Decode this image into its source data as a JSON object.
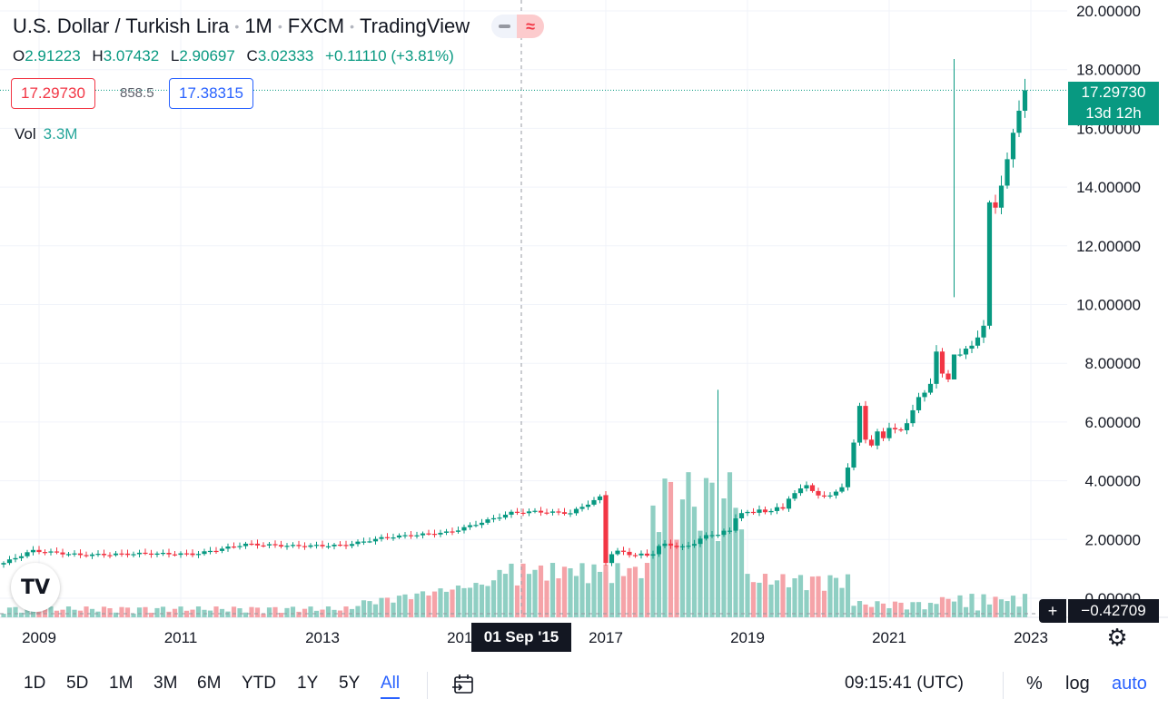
{
  "header": {
    "symbol_name": "U.S. Dollar / Turkish Lira",
    "interval": "1M",
    "exchange": "FXCM",
    "source": "TradingView"
  },
  "ohlc": {
    "o_label": "O",
    "o": "2.91223",
    "h_label": "H",
    "h": "3.07432",
    "l_label": "L",
    "l": "2.90697",
    "c_label": "C",
    "c": "3.02333",
    "change": "+0.11110 (+3.81%)"
  },
  "quote": {
    "sell": "17.29730",
    "spread": "858.5",
    "buy": "17.38315"
  },
  "volume": {
    "label": "Vol",
    "value": "3.3M"
  },
  "last_price": {
    "price": "17.29730",
    "countdown": "13d 12h"
  },
  "crosshair": {
    "date_label": "01 Sep '15",
    "price_label": "−0.42709"
  },
  "toolbar": {
    "timeframes": [
      "1D",
      "5D",
      "1M",
      "3M",
      "6M",
      "YTD",
      "1Y",
      "5Y",
      "All"
    ],
    "active_timeframe": "All",
    "clock": "09:15:41 (UTC)",
    "percent": "%",
    "log": "log",
    "auto": "auto"
  },
  "icons": {
    "logo": "tradingview-logo-icon",
    "settings": "gear-icon",
    "calendar": "calendar-goto-icon",
    "plus": "plus-icon"
  },
  "colors": {
    "up": "#089981",
    "down": "#f23645",
    "vol_up": "#8fcfc3",
    "vol_down": "#f5a3a8",
    "accent": "#2962ff"
  },
  "chart_data": {
    "type": "candlestick",
    "title": "",
    "xlabel": "",
    "ylabel": "",
    "x_ticks": [
      "2009",
      "2011",
      "2013",
      "2015",
      "2017",
      "2019",
      "2021",
      "2023"
    ],
    "y_ticks": [
      "0.00000",
      "2.00000",
      "4.00000",
      "6.00000",
      "8.00000",
      "10.00000",
      "12.00000",
      "14.00000",
      "16.00000",
      "18.00000",
      "20.00000"
    ],
    "ylim": [
      -0.4,
      20.0
    ],
    "xlim": [
      "2008-06",
      "2023-03"
    ],
    "close_series": [
      1.2,
      1.5,
      1.62,
      1.58,
      1.47,
      1.46,
      1.52,
      1.45,
      1.5,
      1.78,
      1.86,
      1.79,
      1.74,
      1.77,
      1.79,
      1.85,
      2.03,
      2.15,
      2.15,
      2.16,
      2.3,
      2.3,
      2.72,
      2.9,
      2.94,
      2.91,
      3.02,
      2.93,
      2.97,
      3.1,
      3.05,
      3.39,
      3.58,
      3.74,
      3.85,
      3.65,
      3.5,
      3.48,
      3.5,
      3.63,
      3.78,
      4.45,
      5.3,
      6.55,
      5.4,
      5.2,
      5.68,
      5.45,
      5.8,
      5.75,
      5.72,
      5.96,
      6.4,
      6.85,
      7.0,
      7.3,
      8.4,
      7.65,
      7.45,
      8.3,
      8.3,
      8.5,
      8.6,
      8.88,
      9.28,
      13.48,
      13.3,
      14.05,
      14.95,
      15.85,
      16.6,
      17.3
    ],
    "close_range_start": "2017-01",
    "notable_points": {
      "crosshair_candle": {
        "date": "2015-09",
        "open": 2.91223,
        "high": 3.07432,
        "low": 2.90697,
        "close": 3.02333,
        "volume": "3.3M"
      },
      "high_2021_12": 18.36,
      "last": 17.2973
    }
  }
}
